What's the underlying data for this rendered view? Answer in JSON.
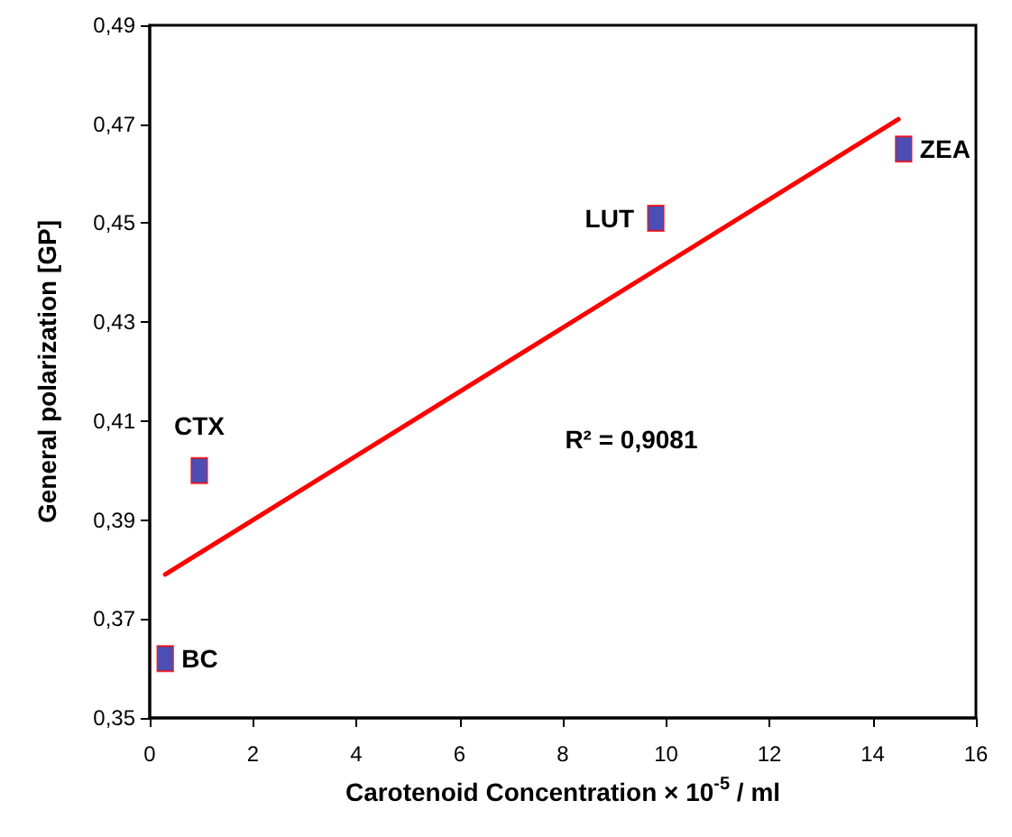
{
  "chart_data": {
    "type": "scatter",
    "xlabel": "Carotenoid Concentration × 10$^{-5}$ / ml",
    "ylabel": "General polarization [GP]",
    "xlim": [
      0,
      16
    ],
    "xticks": [
      0,
      2,
      4,
      6,
      8,
      10,
      12,
      14,
      16
    ],
    "ylim": [
      0.35,
      0.49
    ],
    "yticks": [
      {
        "value": 0.35,
        "label": "0,35"
      },
      {
        "value": 0.37,
        "label": "0,37"
      },
      {
        "value": 0.39,
        "label": "0,39"
      },
      {
        "value": 0.41,
        "label": "0,41"
      },
      {
        "value": 0.43,
        "label": "0,43"
      },
      {
        "value": 0.45,
        "label": "0,45"
      },
      {
        "value": 0.47,
        "label": "0,47"
      },
      {
        "value": 0.49,
        "label": "0,49"
      }
    ],
    "series": [
      {
        "type": "scatter",
        "color": "#2020a0",
        "marker": "square",
        "x": [
          0.3,
          0.96,
          9.8,
          14.6
        ],
        "values": [
          0.362,
          0.4,
          0.451,
          0.465
        ]
      },
      {
        "type": "line",
        "color": "#ff0000",
        "marker": "none",
        "line_style": "solid",
        "x": [
          0.3,
          14.5
        ],
        "values": [
          0.379,
          0.471
        ]
      }
    ],
    "annotations": [
      {
        "text": "BC",
        "x": 0.3,
        "y": 0.362
      },
      {
        "text": "CTX",
        "x": 0.96,
        "y": 0.4
      },
      {
        "text": "LUT",
        "x": 9.8,
        "y": 0.451
      },
      {
        "text": "ZEA",
        "x": 14.6,
        "y": 0.465
      },
      "R² = 0,9081"
    ],
    "grid": false
  }
}
